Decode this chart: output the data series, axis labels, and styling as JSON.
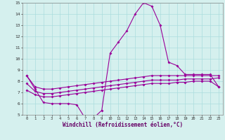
{
  "x": [
    0,
    1,
    2,
    3,
    4,
    5,
    6,
    7,
    8,
    9,
    10,
    11,
    12,
    13,
    14,
    15,
    16,
    17,
    18,
    19,
    20,
    21,
    22,
    23
  ],
  "curve_main": [
    8.5,
    7.3,
    6.1,
    6.0,
    6.0,
    6.0,
    5.9,
    4.7,
    4.7,
    5.4,
    10.5,
    11.5,
    12.5,
    14.0,
    15.0,
    14.7,
    13.0,
    9.7,
    9.4,
    8.6,
    8.6,
    8.6,
    8.6,
    7.5
  ],
  "curve_top": [
    8.5,
    7.5,
    7.3,
    7.3,
    7.4,
    7.5,
    7.6,
    7.7,
    7.8,
    7.9,
    8.0,
    8.1,
    8.2,
    8.3,
    8.4,
    8.5,
    8.5,
    8.5,
    8.5,
    8.5,
    8.5,
    8.5,
    8.5,
    8.5
  ],
  "curve_mid": [
    7.8,
    7.1,
    6.9,
    6.9,
    7.0,
    7.1,
    7.2,
    7.3,
    7.4,
    7.5,
    7.6,
    7.7,
    7.8,
    7.9,
    8.0,
    8.1,
    8.1,
    8.1,
    8.1,
    8.2,
    8.2,
    8.2,
    8.2,
    8.3
  ],
  "curve_bot": [
    7.2,
    6.8,
    6.6,
    6.6,
    6.7,
    6.8,
    6.9,
    7.0,
    7.1,
    7.2,
    7.3,
    7.4,
    7.5,
    7.6,
    7.7,
    7.8,
    7.8,
    7.8,
    7.9,
    7.9,
    8.0,
    8.0,
    8.0,
    7.5
  ],
  "bg_color": "#d5f0ee",
  "grid_color": "#aadddd",
  "line_color": "#990099",
  "xlabel": "Windchill (Refroidissement éolien,°C)",
  "ylim": [
    5,
    15
  ],
  "xlim": [
    -0.5,
    23.5
  ]
}
